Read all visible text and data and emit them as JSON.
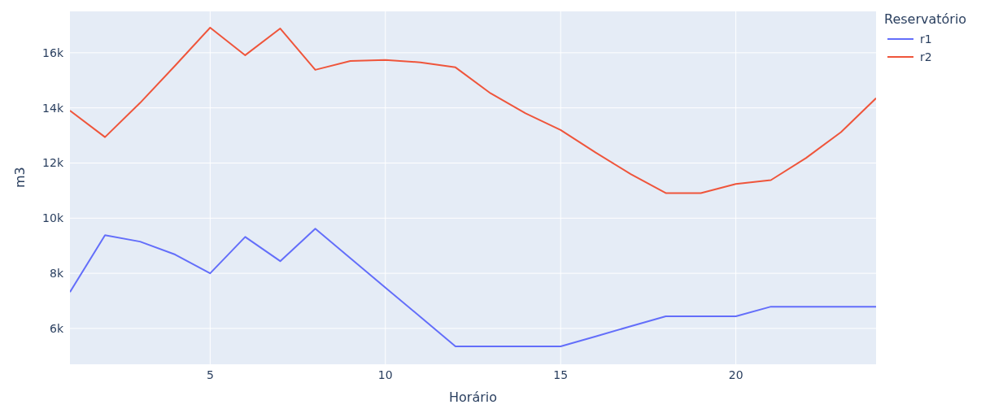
{
  "chart_data": {
    "type": "line",
    "xlabel": "Horário",
    "ylabel": "m3",
    "legend_title": "Reservatório",
    "x": [
      1,
      2,
      3,
      4,
      5,
      6,
      7,
      8,
      9,
      10,
      11,
      12,
      13,
      14,
      15,
      16,
      17,
      18,
      19,
      20,
      21,
      22,
      23,
      24
    ],
    "series": [
      {
        "name": "r1",
        "color": "#636efa",
        "values": [
          7320,
          9380,
          9150,
          8680,
          8000,
          9320,
          8440,
          9620,
          8550,
          7480,
          6420,
          5350,
          5350,
          5350,
          5350,
          5710,
          6080,
          6440,
          6440,
          6440,
          6790,
          6790,
          6790,
          6790
        ]
      },
      {
        "name": "r2",
        "color": "#ef553b",
        "values": [
          13900,
          12940,
          14180,
          15530,
          16910,
          15910,
          16880,
          15380,
          15700,
          15740,
          15650,
          15470,
          14530,
          13800,
          13200,
          12380,
          11600,
          10910,
          10910,
          11240,
          11380,
          12180,
          13120,
          14350
        ]
      }
    ],
    "xlim": [
      1,
      24
    ],
    "xticks": [
      5,
      10,
      15,
      20
    ],
    "ylim": [
      4700,
      17500
    ],
    "yticks": [
      {
        "value": 6000,
        "label": "6k"
      },
      {
        "value": 8000,
        "label": "8k"
      },
      {
        "value": 10000,
        "label": "10k"
      },
      {
        "value": 12000,
        "label": "12k"
      },
      {
        "value": 14000,
        "label": "14k"
      },
      {
        "value": 16000,
        "label": "16k"
      }
    ],
    "grid": true,
    "legend": "top right",
    "marker": "none",
    "line_style": "solid"
  }
}
